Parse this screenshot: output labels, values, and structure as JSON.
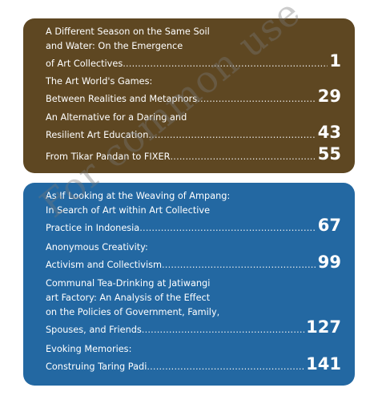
{
  "sections": [
    {
      "entries": [
        {
          "lines": [
            "A Different Season on the Same Soil",
            "and Water: On the Emergence",
            "of Art Collectives"
          ],
          "page": "1"
        },
        {
          "lines": [
            "The Art World's Games:",
            "Between Realities and Metaphors"
          ],
          "page": "29"
        },
        {
          "lines": [
            "An Alternative for a Daring and",
            "Resilient Art Education"
          ],
          "page": "43"
        },
        {
          "lines": [
            "From Tikar Pandan to FIXER"
          ],
          "page": "55"
        }
      ]
    },
    {
      "entries": [
        {
          "lines": [
            "As If Looking at the Weaving of Ampang:",
            "In Search of Art within Art Collective",
            "Practice in Indonesia"
          ],
          "page": "67"
        },
        {
          "lines": [
            "Anonymous Creativity:",
            "Activism and Collectivism"
          ],
          "page": "99"
        },
        {
          "lines": [
            "Communal Tea-Drinking at Jatiwangi",
            "art Factory: An Analysis of the Effect",
            "on the Policies of Government, Family,",
            "Spouses, and Friends"
          ],
          "page": "127"
        },
        {
          "lines": [
            "Evoking Memories:",
            "Construing Taring Padi"
          ],
          "page": "141"
        }
      ]
    }
  ],
  "watermark": "For common use",
  "colors": {
    "brown_box": "#5e4722",
    "blue_box": "#2368a2"
  }
}
